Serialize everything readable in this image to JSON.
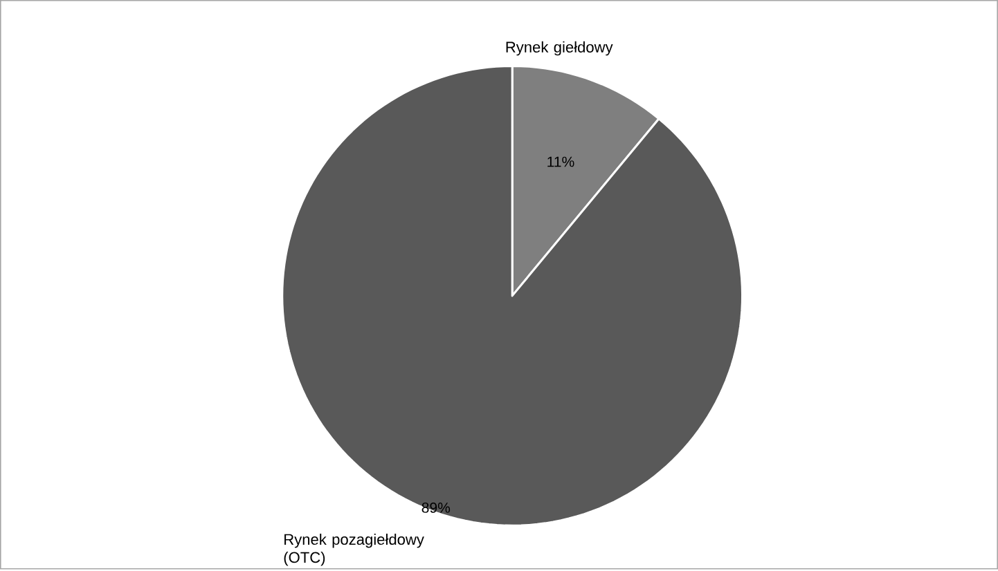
{
  "chart_data": {
    "type": "pie",
    "categories": [
      "Rynek giełdowy",
      "Rynek pozagiełdowy (OTC)"
    ],
    "values": [
      11,
      89
    ],
    "colors": [
      "#7f7f7f",
      "#595959"
    ],
    "value_labels": [
      "11%",
      "89%"
    ]
  }
}
